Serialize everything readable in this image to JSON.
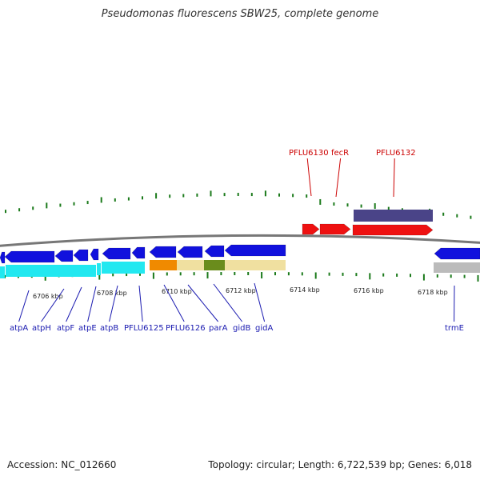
{
  "title": "Pseudomonas fluorescens SBW25, complete genome",
  "footer": {
    "accession": "Accession: NC_012660",
    "stats": "Topology: circular; Length: 6,722,539 bp; Genes: 6,018"
  },
  "colors": {
    "forward_cds": "#ee1111",
    "reverse_cds": "#1111dd",
    "slate": "#4a4488",
    "cyan": "#22e8f0",
    "orange": "#f08a00",
    "khaki": "#f0e0a0",
    "olive": "#6a8c1c",
    "gray": "#bbbbbb",
    "tick": "#1b7a1b",
    "backbone": "#777777",
    "label_blue": "#1a1ab0",
    "label_red": "#cc0000"
  },
  "kbp_labels": [
    "6706 kbp",
    "6708 kbp",
    "6710 kbp",
    "6712 kbp",
    "6714 kbp",
    "6716 kbp",
    "6718 kbp"
  ],
  "genes_lower": [
    "atpA",
    "atpH",
    "atpF",
    "atpE",
    "atpB",
    "PFLU6125",
    "PFLU6126",
    "parA",
    "gidB",
    "gidA",
    "trmE"
  ],
  "genes_upper": [
    "PFLU6130",
    "fecR",
    "PFLU6132"
  ]
}
